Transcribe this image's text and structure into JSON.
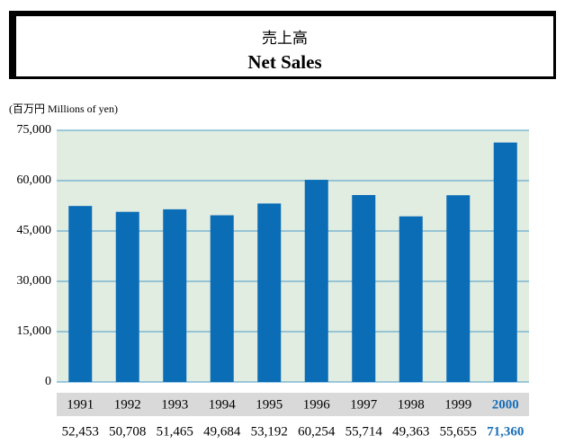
{
  "header": {
    "title_ja": "売上高",
    "title_en": "Net Sales"
  },
  "chart_data": {
    "type": "bar",
    "unit_label": "(百万円 Millions of yen)",
    "categories": [
      "1991",
      "1992",
      "1993",
      "1994",
      "1995",
      "1996",
      "1997",
      "1998",
      "1999",
      "2000"
    ],
    "values": [
      52453,
      50708,
      51465,
      49684,
      53192,
      60254,
      55714,
      49363,
      55655,
      71360
    ],
    "value_labels": [
      "52,453",
      "50,708",
      "51,465",
      "49,684",
      "53,192",
      "60,254",
      "55,714",
      "49,363",
      "55,655",
      "71,360"
    ],
    "color": "#0b6db6",
    "highlight_category": "2000",
    "highlight_color": "#1a70b8",
    "background": "#e1ede1",
    "grid": true,
    "grid_color": "#4a9bc8",
    "ylim": [
      0,
      75000
    ],
    "yticks": [
      0,
      {
        "value": 15000,
        "label": "15,000"
      },
      {
        "value": 30000,
        "label": "30,000"
      },
      {
        "value": 45000,
        "label": "45,000"
      },
      {
        "value": 60000,
        "label": "60,000"
      },
      {
        "value": 75000,
        "label": "75,000"
      }
    ]
  }
}
